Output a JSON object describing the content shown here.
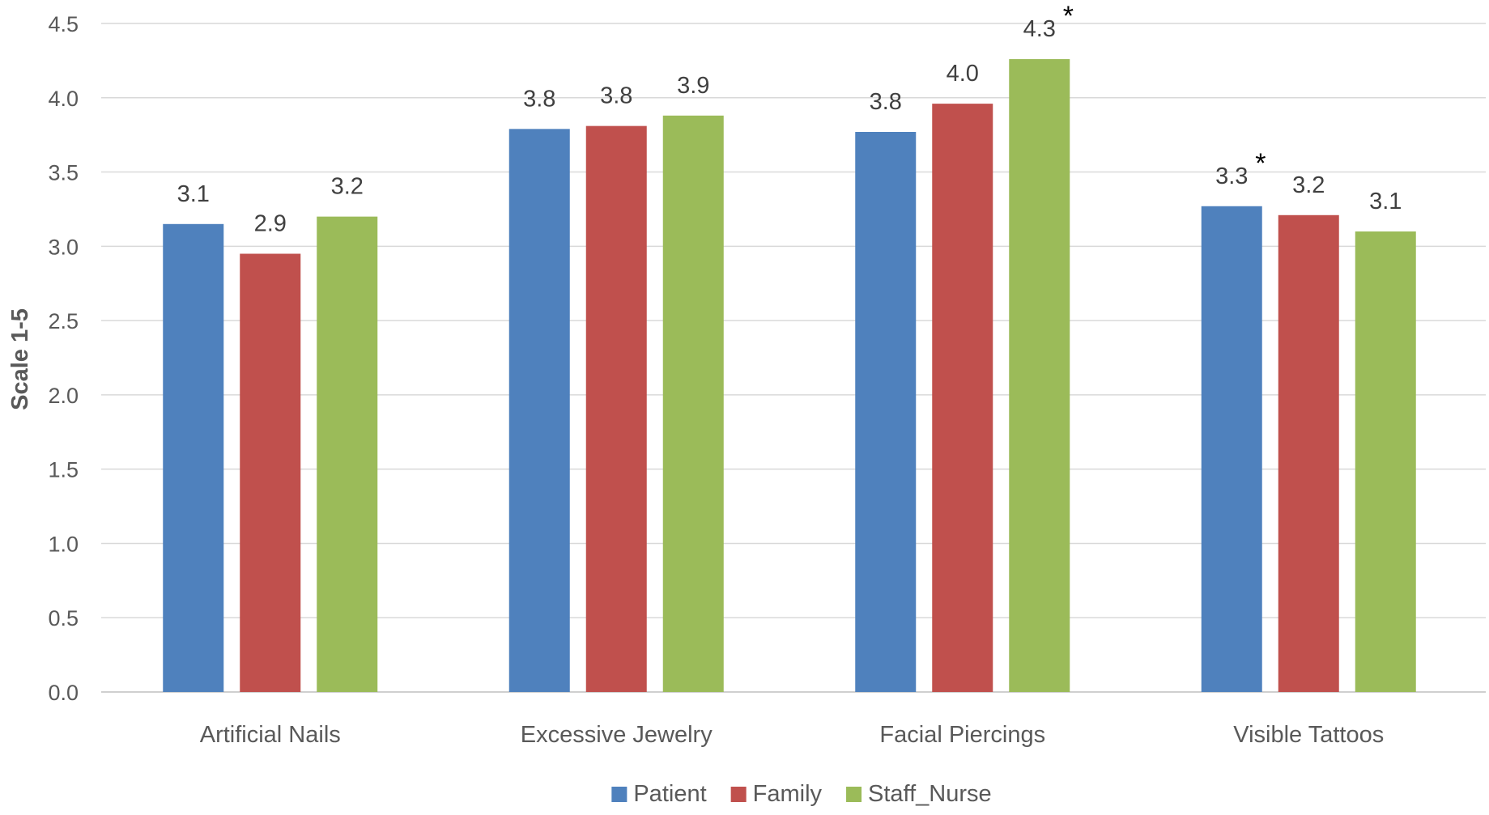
{
  "chart_data": {
    "type": "bar",
    "title": "",
    "xlabel": "",
    "ylabel": "Scale 1-5",
    "ylim": [
      0,
      4.5
    ],
    "yticks": [
      "0.0",
      "0.5",
      "1.0",
      "1.5",
      "2.0",
      "2.5",
      "3.0",
      "3.5",
      "4.0",
      "4.5"
    ],
    "grid": true,
    "legend_position": "bottom",
    "categories": [
      "Artificial Nails",
      "Excessive Jewelry",
      "Facial Piercings",
      "Visible Tattoos"
    ],
    "series": [
      {
        "name": "Patient",
        "color": "#4f81bd",
        "values": [
          3.15,
          3.79,
          3.77,
          3.27
        ],
        "labels": [
          "3.1",
          "3.8",
          "3.8",
          "3.3"
        ],
        "significance": [
          false,
          false,
          false,
          true
        ]
      },
      {
        "name": "Family",
        "color": "#c0504d",
        "values": [
          2.95,
          3.81,
          3.96,
          3.21
        ],
        "labels": [
          "2.9",
          "3.8",
          "4.0",
          "3.2"
        ],
        "significance": [
          false,
          false,
          false,
          false
        ]
      },
      {
        "name": "Staff_Nurse",
        "color": "#9bbb59",
        "values": [
          3.2,
          3.88,
          4.26,
          3.1
        ],
        "labels": [
          "3.2",
          "3.9",
          "4.3",
          "3.1"
        ],
        "significance": [
          false,
          false,
          true,
          false
        ]
      }
    ],
    "significance_symbol": "*"
  }
}
